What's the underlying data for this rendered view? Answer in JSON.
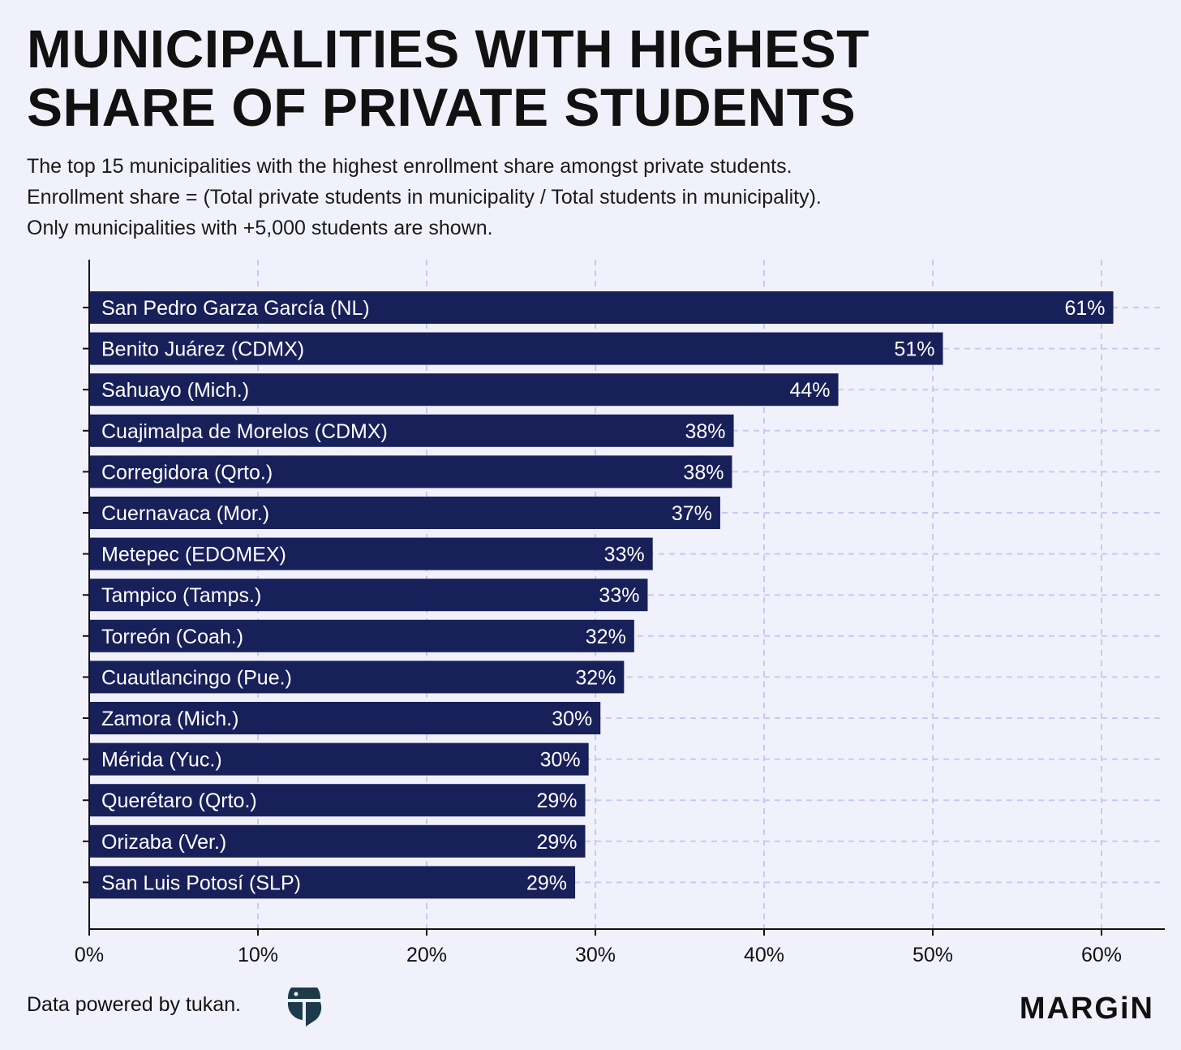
{
  "header": {
    "title_line1": "MUNICIPALITIES WITH HIGHEST",
    "title_line2": "SHARE OF PRIVATE STUDENTS",
    "subtitle_line1": "The top 15 municipalities with the highest enrollment share amongst private students.",
    "subtitle_line2": "Enrollment share = (Total private students in municipality / Total students in municipality).",
    "subtitle_line3": "Only municipalities with +5,000 students are shown."
  },
  "footer": {
    "source_text": "Data powered by tukan.",
    "brand": "MARGiN"
  },
  "colors": {
    "background": "#f1f1fb",
    "bar": "#18205a",
    "bar_text": "#ffffff",
    "grid": "#c9c9f3",
    "axis": "#111111"
  },
  "chart_data": {
    "type": "bar",
    "orientation": "horizontal",
    "title": "MUNICIPALITIES WITH HIGHEST SHARE OF PRIVATE STUDENTS",
    "xlabel": "",
    "ylabel": "",
    "xlim": [
      0,
      64
    ],
    "grid": true,
    "categories": [
      "San Pedro Garza García (NL)",
      "Benito Juárez (CDMX)",
      "Sahuayo (Mich.)",
      "Cuajimalpa de Morelos (CDMX)",
      "Corregidora (Qrto.)",
      "Cuernavaca (Mor.)",
      "Metepec (EDOMEX)",
      "Tampico (Tamps.)",
      "Torreón (Coah.)",
      "Cuautlancingo (Pue.)",
      "Zamora (Mich.)",
      "Mérida (Yuc.)",
      "Querétaro (Qrto.)",
      "Orizaba (Ver.)",
      "San Luis Potosí (SLP)"
    ],
    "values": [
      60.7,
      50.6,
      44.4,
      38.2,
      38.1,
      37.4,
      33.4,
      33.1,
      32.3,
      31.7,
      30.3,
      29.6,
      29.4,
      29.4,
      28.8
    ],
    "value_labels": [
      "61%",
      "51%",
      "44%",
      "38%",
      "38%",
      "37%",
      "33%",
      "33%",
      "32%",
      "32%",
      "30%",
      "30%",
      "29%",
      "29%",
      "29%"
    ],
    "x_ticks": [
      0,
      10,
      20,
      30,
      40,
      50,
      60
    ],
    "x_tick_labels": [
      "0%",
      "10%",
      "20%",
      "30%",
      "40%",
      "50%",
      "60%"
    ]
  }
}
